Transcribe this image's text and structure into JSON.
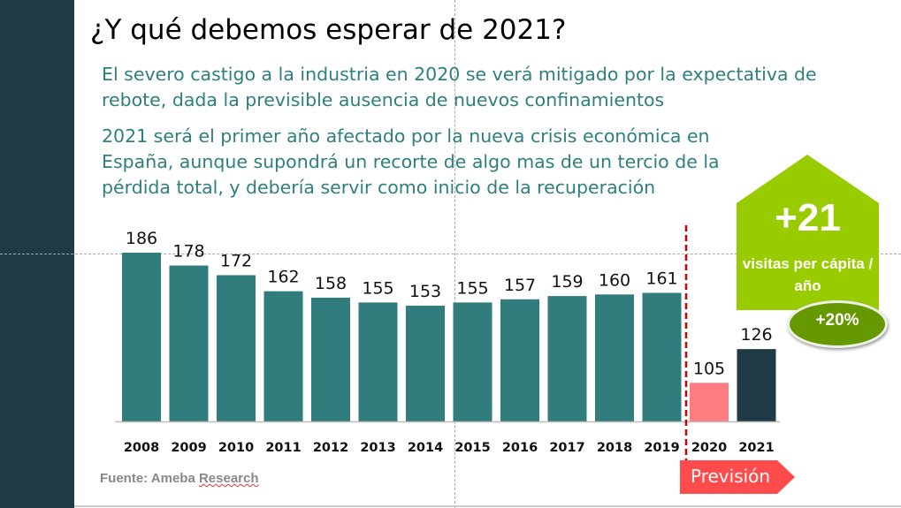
{
  "slide": {
    "title": "¿Y qué debemos esperar de 2021?",
    "paragraph1": "El severo castigo a la industria en 2020 se verá mitigado por la expectativa de rebote, dada la previsible ausencia de nuevos confinamientos",
    "paragraph2": "2021 será el primer año afectado por la nueva crisis económica en España, aunque supondrá un recorte de algo mas de un tercio de la pérdida total, y debería servir como inicio de la recuperación",
    "source_prefix": "Fuente: Ameba ",
    "source_suffix": "Research",
    "forecast_label": "Previsión",
    "callout_value": "+21",
    "callout_text": "visitas per cápita / año",
    "callout_pct": "+20%"
  },
  "colors": {
    "historical": "#317c7c",
    "2020": "#ff7c80",
    "2021": "#1f3a44",
    "forecast_line": "#cc0000",
    "callout": "#99cc00",
    "pct_badge": "#669900",
    "text": "#2e7f7f"
  },
  "chart_data": {
    "type": "bar",
    "categories": [
      "2008",
      "2009",
      "2010",
      "2011",
      "2012",
      "2013",
      "2014",
      "2015",
      "2016",
      "2017",
      "2018",
      "2019",
      "2020",
      "2021"
    ],
    "values": [
      186,
      178,
      172,
      162,
      158,
      155,
      153,
      155,
      157,
      159,
      160,
      161,
      105,
      126
    ],
    "ylim": [
      81,
      186
    ],
    "grid": false,
    "data_labels": true,
    "forecast_from": "2020"
  }
}
